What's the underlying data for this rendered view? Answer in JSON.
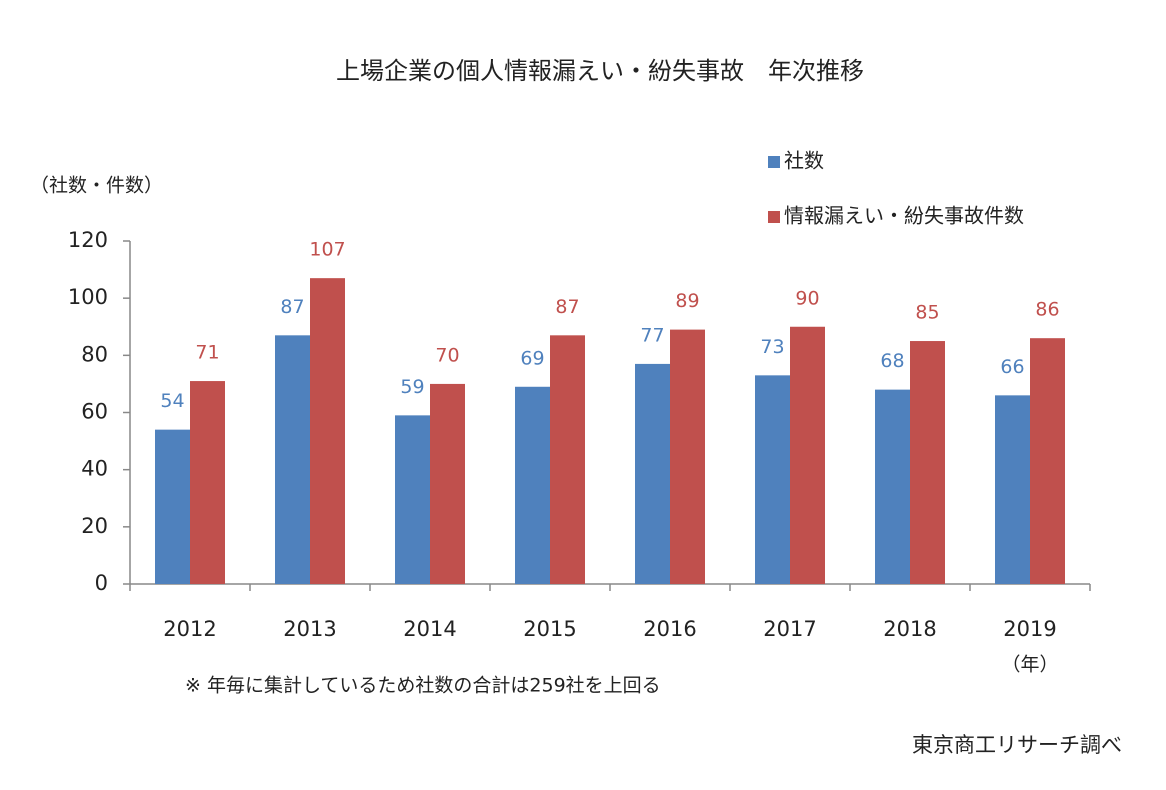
{
  "chart_data": {
    "type": "bar",
    "title": "上場企業の個人情報漏えい・紛失事故　年次推移",
    "y_label": "（社数・件数）",
    "x_label": "（年）",
    "note": "※ 年毎に集計しているため社数の合計は259社を上回る",
    "source": "東京商工リサーチ調べ",
    "categories": [
      "2012",
      "2013",
      "2014",
      "2015",
      "2016",
      "2017",
      "2018",
      "2019"
    ],
    "series": [
      {
        "name": "社数",
        "color": "#4f81bd",
        "values": [
          54,
          87,
          59,
          69,
          77,
          73,
          68,
          66
        ]
      },
      {
        "name": "情報漏えい・紛失事故件数",
        "color": "#c0504d",
        "values": [
          71,
          107,
          70,
          87,
          89,
          90,
          85,
          86
        ]
      }
    ],
    "ylim": [
      0,
      120
    ],
    "yticks": [
      0,
      20,
      40,
      60,
      80,
      100,
      120
    ],
    "grid": false,
    "legend": "top-right"
  }
}
